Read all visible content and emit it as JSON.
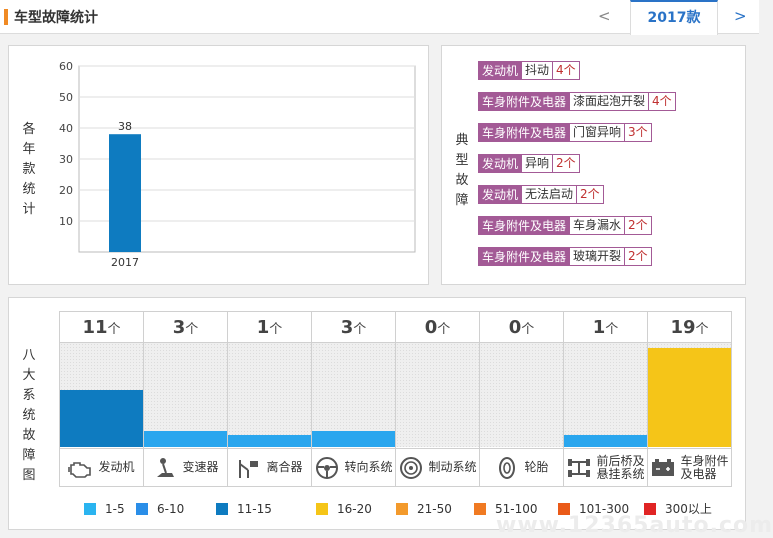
{
  "header": {
    "title": "车型故障统计",
    "prev": "<",
    "year_tab": "2017款",
    "next": ">"
  },
  "chart_panel": {
    "vertical_label": [
      "各",
      "年",
      "款",
      "统",
      "计"
    ]
  },
  "chart_data": {
    "type": "bar",
    "categories": [
      "2017"
    ],
    "values": [
      38
    ],
    "ylim": [
      0,
      60
    ],
    "yticks": [
      10,
      20,
      30,
      40,
      50,
      60
    ],
    "bar_color": "#0e7bc0",
    "grid": true
  },
  "faults_panel": {
    "vertical_label": [
      "典",
      "型",
      "故",
      "障"
    ],
    "items": [
      {
        "system": "发动机",
        "item": "抖动",
        "count": "4个"
      },
      {
        "system": "车身附件及电器",
        "item": "漆面起泡开裂",
        "count": "4个"
      },
      {
        "system": "车身附件及电器",
        "item": "门窗异响",
        "count": "3个"
      },
      {
        "system": "发动机",
        "item": "异响",
        "count": "2个"
      },
      {
        "system": "发动机",
        "item": "无法启动",
        "count": "2个"
      },
      {
        "system": "车身附件及电器",
        "item": "车身漏水",
        "count": "2个"
      },
      {
        "system": "车身附件及电器",
        "item": "玻璃开裂",
        "count": "2个"
      }
    ],
    "colors": {
      "system_bg": "#a35a96",
      "count_text": "#c03030"
    }
  },
  "systems_panel": {
    "vertical_label": [
      "八",
      "大",
      "系",
      "统",
      "故",
      "障",
      "图"
    ],
    "unit": "个",
    "systems": [
      {
        "name_lines": [
          "发动机"
        ],
        "count": 11,
        "color": "#0e7bc0",
        "icon": "engine-icon"
      },
      {
        "name_lines": [
          "变速器"
        ],
        "count": 3,
        "color": "#2aa6ee",
        "icon": "gearshift-icon"
      },
      {
        "name_lines": [
          "离合器"
        ],
        "count": 1,
        "color": "#2aa6ee",
        "icon": "clutch-icon"
      },
      {
        "name_lines": [
          "转向系统"
        ],
        "count": 3,
        "color": "#2aa6ee",
        "icon": "steering-wheel-icon"
      },
      {
        "name_lines": [
          "制动系统"
        ],
        "count": 0,
        "color": "#2aa6ee",
        "icon": "brake-disc-icon"
      },
      {
        "name_lines": [
          "轮胎"
        ],
        "count": 0,
        "color": "#2aa6ee",
        "icon": "tire-icon"
      },
      {
        "name_lines": [
          "前后桥及",
          "悬挂系统"
        ],
        "count": 1,
        "color": "#2aa6ee",
        "icon": "axle-icon"
      },
      {
        "name_lines": [
          "车身附件",
          "及电器"
        ],
        "count": 19,
        "color": "#f5c518",
        "icon": "battery-icon"
      }
    ],
    "max_level": 20
  },
  "legend": [
    {
      "label": "1-5",
      "color": "#2ab4f0"
    },
    {
      "label": "6-10",
      "color": "#2a8ee8"
    },
    {
      "label": "11-15",
      "color": "#0e7bc0"
    },
    {
      "label": "16-20",
      "color": "#f5c518"
    },
    {
      "label": "21-50",
      "color": "#f39a2c"
    },
    {
      "label": "51-100",
      "color": "#f07a22"
    },
    {
      "label": "101-300",
      "color": "#ea5a18"
    },
    {
      "label": "300以上",
      "color": "#e02424"
    }
  ],
  "watermark": "www.12365auto.com"
}
